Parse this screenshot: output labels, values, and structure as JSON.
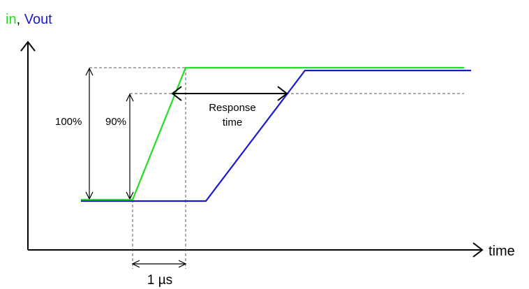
{
  "title": {
    "in_label": "in",
    "separator": ", ",
    "vout_label": "Vout",
    "in_color": "#22dd22",
    "vout_color": "#1a1acc"
  },
  "axes": {
    "x_label": "time"
  },
  "annotations": {
    "level_100": "100%",
    "level_90": "90%",
    "response_line1": "Response",
    "response_line2": "time",
    "rise_time": "1 µs"
  },
  "colors": {
    "input_signal": "#22dd22",
    "output_signal": "#1a1acc",
    "axes": "#000000",
    "guides": "#555555"
  }
}
